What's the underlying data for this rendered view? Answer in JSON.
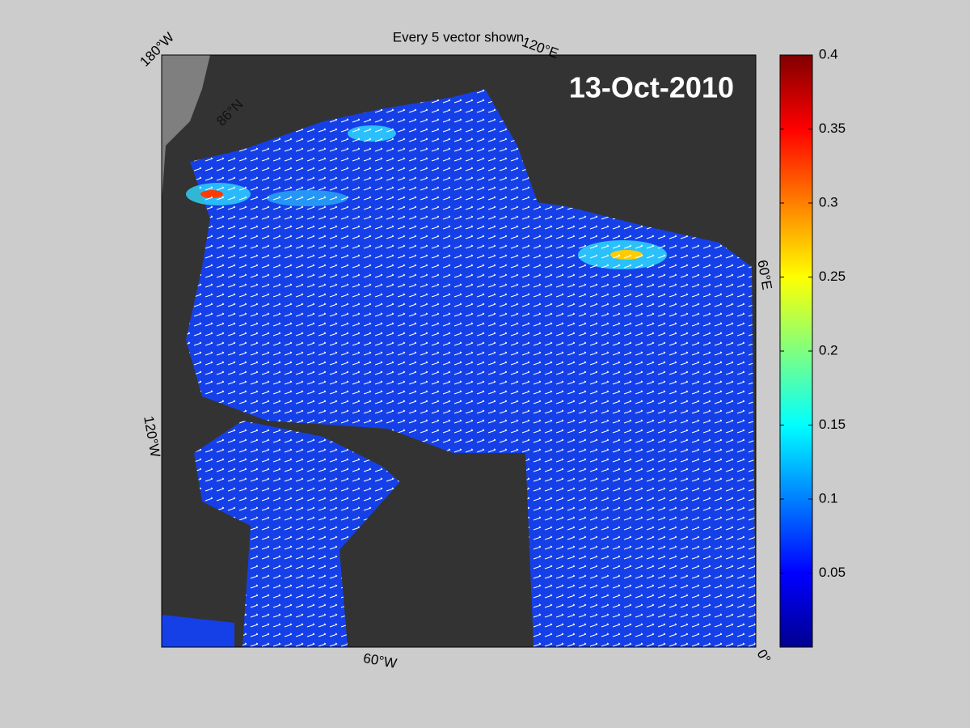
{
  "title": "Every 5 vector shown",
  "date": "13-Oct-2010",
  "map_labels": {
    "lon_180w": "180°W",
    "lon_120e": "120°E",
    "lon_60e": "60°E",
    "lon_0": "0°",
    "lon_60w": "60°W",
    "lon_120w": "120°W",
    "lat_86n": "86°N"
  },
  "colorbar": {
    "lim": [
      0,
      0.4
    ],
    "ticks": [
      0.05,
      0.1,
      0.15,
      0.2,
      0.25,
      0.3,
      0.35,
      0.4
    ]
  }
}
